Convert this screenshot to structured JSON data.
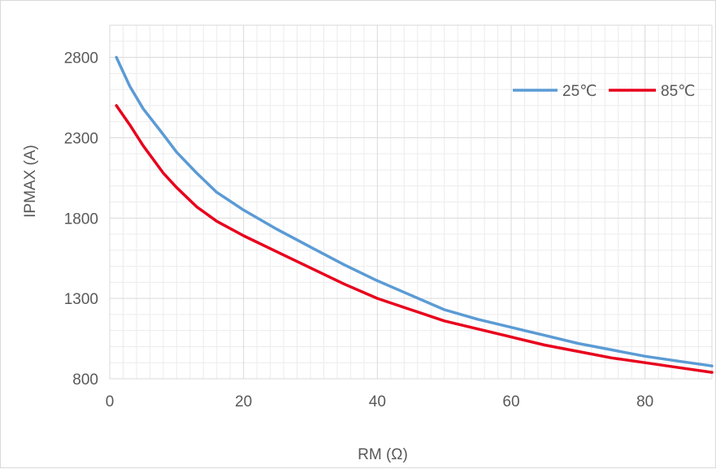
{
  "chart_data": {
    "type": "line",
    "title": "",
    "xlabel": "RM (Ω)",
    "ylabel": "IPMAX (A)",
    "xlim": [
      0,
      90
    ],
    "ylim": [
      800,
      3000
    ],
    "x_ticks": [
      "0",
      "20",
      "40",
      "60",
      "80"
    ],
    "x_tick_values": [
      0,
      20,
      40,
      60,
      80
    ],
    "y_ticks": [
      "800",
      "1300",
      "1800",
      "2300",
      "2800"
    ],
    "y_tick_values": [
      800,
      1300,
      1800,
      2300,
      2800
    ],
    "minor_x_step": 2,
    "minor_y_step": 100,
    "grid": true,
    "legend_position": "top-right",
    "series": [
      {
        "name": "25℃",
        "color": "#5b9bd5",
        "x": [
          1,
          3,
          5,
          8,
          10,
          13,
          16,
          20,
          25,
          30,
          35,
          40,
          45,
          50,
          55,
          60,
          65,
          70,
          75,
          80,
          85,
          90
        ],
        "y": [
          2800,
          2620,
          2480,
          2320,
          2210,
          2080,
          1960,
          1850,
          1730,
          1620,
          1510,
          1410,
          1320,
          1230,
          1170,
          1120,
          1070,
          1020,
          980,
          940,
          910,
          880
        ]
      },
      {
        "name": "85℃",
        "color": "#e8001c",
        "x": [
          1,
          3,
          5,
          8,
          10,
          13,
          16,
          20,
          25,
          30,
          35,
          40,
          45,
          50,
          55,
          60,
          65,
          70,
          75,
          80,
          85,
          90
        ],
        "y": [
          2500,
          2380,
          2250,
          2080,
          1990,
          1870,
          1780,
          1690,
          1590,
          1490,
          1390,
          1300,
          1230,
          1160,
          1110,
          1060,
          1010,
          970,
          930,
          900,
          870,
          840
        ]
      }
    ]
  }
}
